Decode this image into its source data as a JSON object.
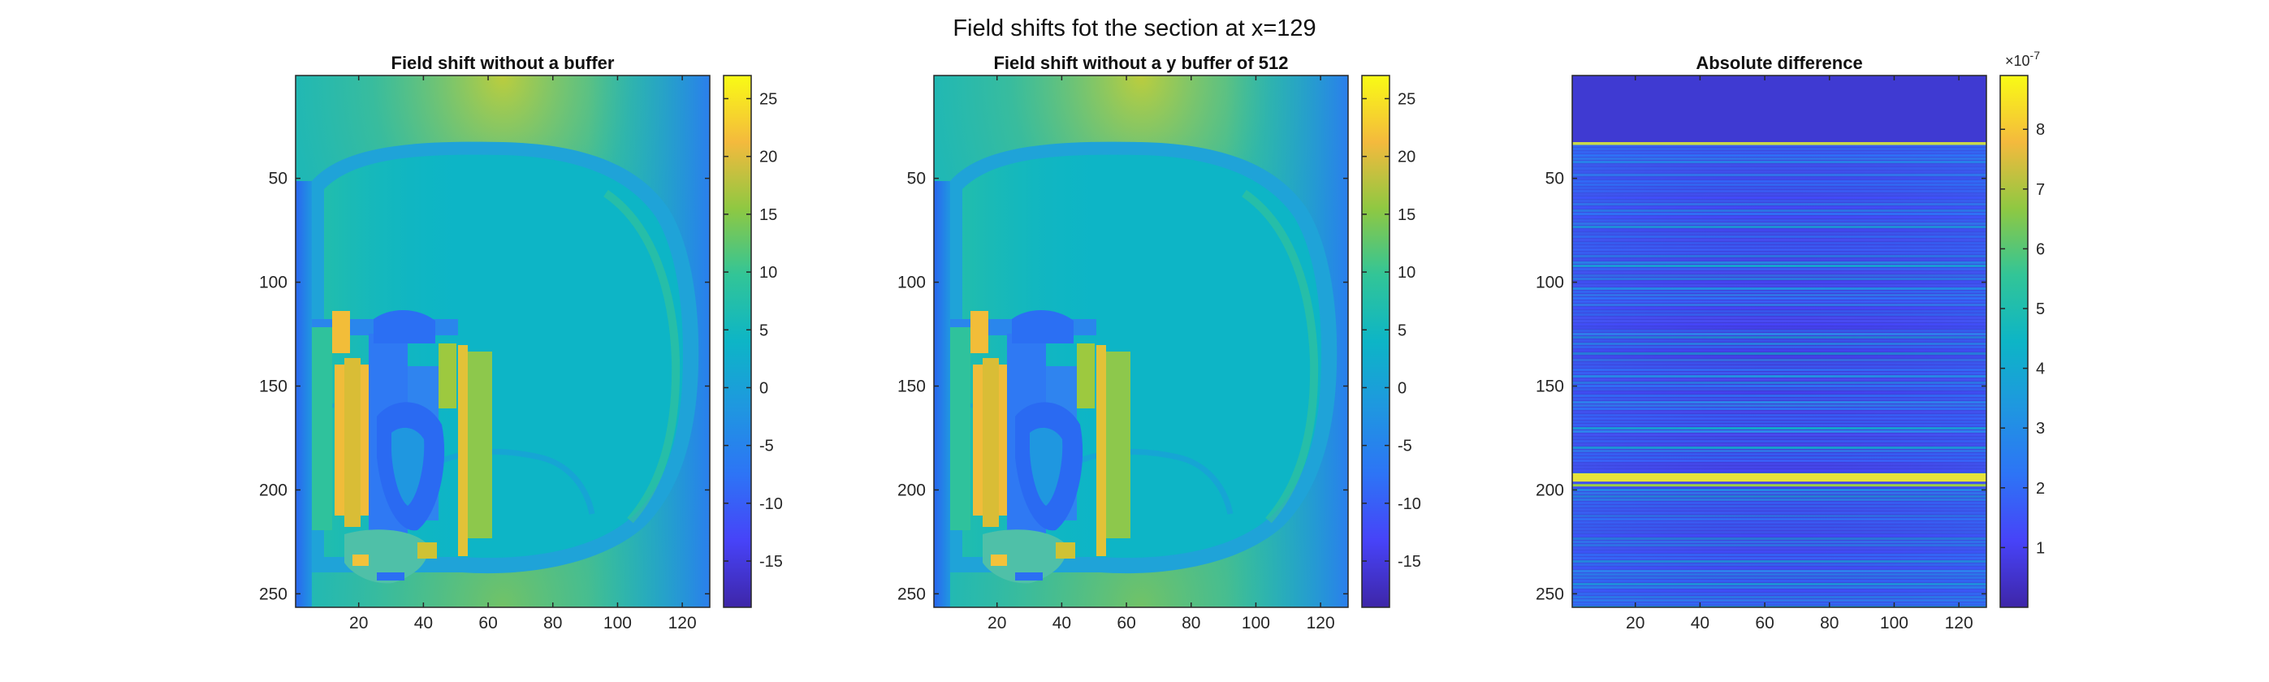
{
  "suptitle": "Field shifts fot the section at x=129",
  "chart_data": [
    {
      "type": "heatmap",
      "title": "Field shift without a buffer",
      "colormap": "parula",
      "x_ticks": [
        20,
        40,
        60,
        80,
        100,
        120
      ],
      "y_ticks": [
        50,
        100,
        150,
        200,
        250
      ],
      "xlim": [
        0.5,
        128.5
      ],
      "ylim": [
        0.5,
        256.5
      ],
      "y_reversed": true,
      "clim": [
        -19,
        27
      ],
      "colorbar_ticks": [
        -15,
        -10,
        -5,
        0,
        5,
        10,
        15,
        20,
        25
      ],
      "colorbar_labels": [
        "-15",
        "-10",
        "-5",
        "0",
        "5",
        "10",
        "15",
        "20",
        "25"
      ],
      "background_value": 3
    },
    {
      "type": "heatmap",
      "title": "Field shift without a y buffer of 512",
      "colormap": "parula",
      "x_ticks": [
        20,
        40,
        60,
        80,
        100,
        120
      ],
      "y_ticks": [
        50,
        100,
        150,
        200,
        250
      ],
      "xlim": [
        0.5,
        128.5
      ],
      "ylim": [
        0.5,
        256.5
      ],
      "y_reversed": true,
      "clim": [
        -19,
        27
      ],
      "colorbar_ticks": [
        -15,
        -10,
        -5,
        0,
        5,
        10,
        15,
        20,
        25
      ],
      "colorbar_labels": [
        "-15",
        "-10",
        "-5",
        "0",
        "5",
        "10",
        "15",
        "20",
        "25"
      ],
      "background_value": 3
    },
    {
      "type": "heatmap",
      "title": "Absolute difference",
      "colormap": "parula",
      "x_ticks": [
        20,
        40,
        60,
        80,
        100,
        120
      ],
      "y_ticks": [
        50,
        100,
        150,
        200,
        250
      ],
      "xlim": [
        0.5,
        128.5
      ],
      "ylim": [
        0.5,
        256.5
      ],
      "y_reversed": true,
      "clim": [
        0,
        8.9e-07
      ],
      "colorbar_ticks": [
        1e-07,
        2e-07,
        3e-07,
        4e-07,
        5e-07,
        6e-07,
        7e-07,
        8e-07
      ],
      "colorbar_labels": [
        "1",
        "2",
        "3",
        "4",
        "5",
        "6",
        "7",
        "8"
      ],
      "colorbar_exponent": "-7",
      "colorbar_exponent_base": "×10",
      "bright_band_rows": [
        192,
        196
      ]
    }
  ]
}
